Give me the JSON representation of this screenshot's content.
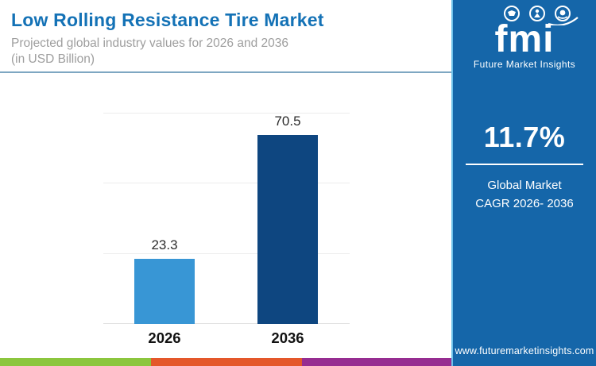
{
  "header": {
    "title": "Low Rolling Resistance Tire Market",
    "subtitle_line1": "Projected global industry values for 2026 and 2036",
    "subtitle_line2": "(in USD Billion)"
  },
  "sidebar": {
    "logo_text": "fmi",
    "logo_tagline": "Future Market Insights",
    "cagr_value": "11.7%",
    "cagr_label_line1": "Global Market",
    "cagr_label_line2": "CAGR 2026- 2036",
    "website": "www.futuremarketinsights.com",
    "background_color": "#1566A9",
    "border_color": "#6FC2EA"
  },
  "chart_data": {
    "type": "bar",
    "title": "Low Rolling Resistance Tire Market",
    "subtitle": "Projected global industry values for 2026 and 2036 (in USD Billion)",
    "categories": [
      "2026",
      "2036"
    ],
    "values": [
      23.3,
      70.5
    ],
    "value_labels": [
      "23.3",
      "70.5"
    ],
    "xlabel": "",
    "ylabel": "",
    "ylim": [
      0,
      75
    ],
    "gridline_step": 25,
    "grid": true,
    "legend": "none",
    "bar_colors": [
      "#3896D5",
      "#0E4680"
    ]
  },
  "footer_stripe": {
    "colors": [
      "#8CC63E",
      "#E4572A",
      "#962D91"
    ]
  },
  "accent_colors": {
    "title_blue": "#1472B6",
    "header_rule": "#7EA7C2",
    "gridline": "#ededed"
  }
}
